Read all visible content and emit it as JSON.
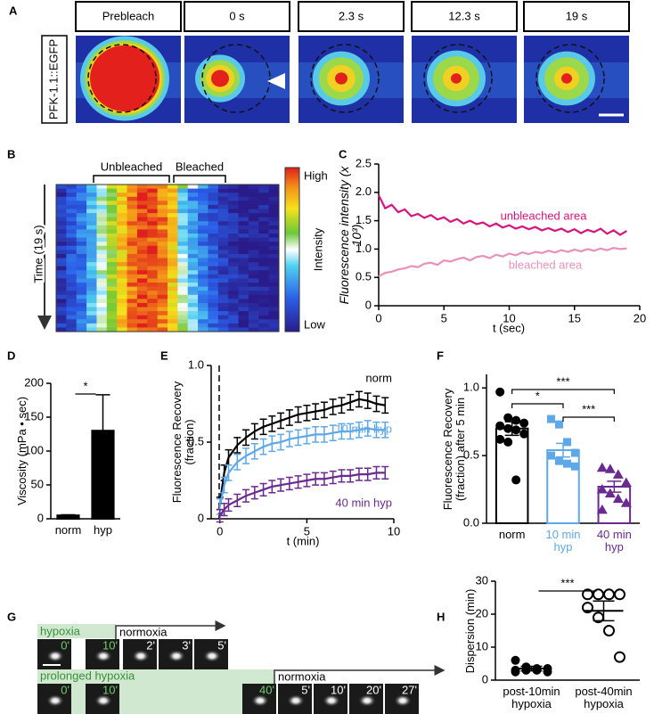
{
  "panel_labels": [
    "A",
    "B",
    "C",
    "D",
    "E",
    "F",
    "G",
    "H"
  ],
  "panel_a": {
    "marker": "PFK-1.1::EGFP",
    "timepoints": [
      "Prebleach",
      "0 s",
      "2.3 s",
      "12.3 s",
      "19 s"
    ]
  },
  "panel_b": {
    "regions": [
      "Unbleached",
      "Bleached"
    ],
    "y_label": "Time (19 s)",
    "colorbar": {
      "high": "High",
      "label": "Intensity",
      "low": "Low"
    }
  },
  "chart_data": [
    {
      "type": "line",
      "y_label": "Fluorescence intensity (x 10³)",
      "x_label": "t (sec)",
      "x": [
        0,
        0.5,
        1,
        1.5,
        2,
        2.5,
        3,
        3.5,
        4,
        4.5,
        5,
        5.5,
        6,
        6.5,
        7,
        7.5,
        8,
        8.5,
        9,
        9.5,
        10,
        10.5,
        11,
        11.5,
        12,
        12.5,
        13,
        13.5,
        14,
        14.5,
        15,
        15.5,
        16,
        16.5,
        17,
        17.5,
        18,
        18.5,
        19
      ],
      "series": [
        {
          "name": "unbleached area",
          "color": "#d6157e",
          "values": [
            1.95,
            1.72,
            1.78,
            1.65,
            1.7,
            1.58,
            1.62,
            1.55,
            1.6,
            1.52,
            1.56,
            1.48,
            1.53,
            1.45,
            1.5,
            1.44,
            1.47,
            1.4,
            1.45,
            1.38,
            1.42,
            1.36,
            1.4,
            1.35,
            1.39,
            1.33,
            1.37,
            1.32,
            1.36,
            1.3,
            1.35,
            1.28,
            1.34,
            1.3,
            1.36,
            1.27,
            1.33,
            1.25,
            1.32
          ]
        },
        {
          "name": "bleached area",
          "color": "#e991b8",
          "values": [
            0.52,
            0.58,
            0.6,
            0.64,
            0.66,
            0.7,
            0.68,
            0.74,
            0.76,
            0.72,
            0.8,
            0.78,
            0.82,
            0.85,
            0.8,
            0.86,
            0.88,
            0.84,
            0.9,
            0.87,
            0.92,
            0.89,
            0.94,
            0.91,
            0.95,
            0.93,
            0.97,
            0.94,
            0.98,
            0.95,
            0.99,
            0.96,
            1.0,
            0.97,
            1.01,
            0.98,
            1.02,
            1.0,
            1.01
          ]
        }
      ],
      "xlim": [
        0,
        20
      ],
      "xticks": [
        0,
        5,
        10,
        15,
        20
      ],
      "ylim": [
        0,
        2.5
      ],
      "yticks": [
        0,
        0.5,
        {
          "value": 1,
          "label": "1.0"
        },
        1.5,
        {
          "value": 2,
          "label": "2.0"
        },
        2.5
      ]
    },
    {
      "type": "bar",
      "y_label": "Viscosity (mPa • sec)",
      "categories": [
        "norm",
        "hyp"
      ],
      "values": [
        5,
        130
      ],
      "errors": [
        1,
        53
      ],
      "colors": [
        "#000000",
        "#000000"
      ],
      "filled": true,
      "ylim": [
        0,
        200
      ],
      "yticks": [
        0,
        50,
        100,
        150,
        200
      ],
      "significance": [
        "*"
      ]
    },
    {
      "type": "line",
      "y_label": "Fluorescence Recovery (fraction)",
      "x_label": "t (min)",
      "x": [
        0,
        0.25,
        0.5,
        1,
        1.5,
        2,
        2.5,
        3,
        3.5,
        4,
        4.5,
        5,
        5.5,
        6,
        6.5,
        7,
        7.5,
        8,
        8.5,
        9,
        9.5
      ],
      "series": [
        {
          "name": "norm",
          "color": "#000000",
          "values": [
            0.1,
            0.3,
            0.4,
            0.48,
            0.53,
            0.57,
            0.6,
            0.62,
            0.64,
            0.66,
            0.68,
            0.69,
            0.7,
            0.71,
            0.73,
            0.74,
            0.76,
            0.78,
            0.77,
            0.75,
            0.74
          ],
          "errors": [
            0.04,
            0.05,
            0.05,
            0.05,
            0.05,
            0.05,
            0.05,
            0.05,
            0.05,
            0.05,
            0.05,
            0.05,
            0.05,
            0.05,
            0.05,
            0.05,
            0.05,
            0.05,
            0.05,
            0.05,
            0.05
          ]
        },
        {
          "name": "10 min hyp",
          "color": "#5fa8e8",
          "values": [
            0.08,
            0.22,
            0.3,
            0.37,
            0.41,
            0.44,
            0.47,
            0.49,
            0.5,
            0.52,
            0.53,
            0.54,
            0.55,
            0.55,
            0.56,
            0.57,
            0.57,
            0.58,
            0.59,
            0.58,
            0.58
          ],
          "errors": [
            0.05,
            0.05,
            0.05,
            0.05,
            0.05,
            0.05,
            0.05,
            0.05,
            0.05,
            0.05,
            0.05,
            0.05,
            0.05,
            0.05,
            0.05,
            0.05,
            0.05,
            0.05,
            0.05,
            0.05,
            0.05
          ]
        },
        {
          "name": "40 min hyp",
          "color": "#6a2a8f",
          "values": [
            0.02,
            0.06,
            0.09,
            0.12,
            0.15,
            0.17,
            0.19,
            0.21,
            0.22,
            0.23,
            0.24,
            0.25,
            0.26,
            0.26,
            0.27,
            0.28,
            0.28,
            0.29,
            0.29,
            0.3,
            0.3
          ],
          "errors": [
            0.04,
            0.04,
            0.04,
            0.04,
            0.04,
            0.04,
            0.04,
            0.04,
            0.04,
            0.04,
            0.04,
            0.04,
            0.04,
            0.04,
            0.04,
            0.04,
            0.04,
            0.04,
            0.04,
            0.04,
            0.04
          ]
        }
      ],
      "xlim": [
        -0.5,
        10
      ],
      "xticks": [
        0,
        5,
        10
      ],
      "ylim": [
        0,
        1
      ],
      "yticks": [
        0,
        0.5,
        {
          "value": 1,
          "label": "1.0"
        }
      ]
    },
    {
      "type": "bar",
      "y_label": "Fluorescence Recovery (fraction) after 5 min",
      "categories": [
        "norm",
        "10 min hyp",
        "40 min hyp"
      ],
      "values": [
        0.7,
        0.54,
        0.27
      ],
      "errors": [
        0.05,
        0.05,
        0.04
      ],
      "colors": [
        "#000000",
        "#5fa8e8",
        "#6a2a8f"
      ],
      "filled": false,
      "markers": [
        "circle",
        "square",
        "triangle"
      ],
      "points": [
        [
          0.97,
          0.78,
          0.76,
          0.74,
          0.72,
          0.7,
          0.69,
          0.66,
          0.62,
          0.6,
          0.32
        ],
        [
          0.77,
          0.73,
          0.6,
          0.52,
          0.5,
          0.46,
          0.44,
          0.42
        ],
        [
          0.41,
          0.4,
          0.36,
          0.3,
          0.25,
          0.22,
          0.18,
          0.15,
          0.1
        ]
      ],
      "ylim": [
        0,
        1.1
      ],
      "yticks": [
        {
          "value": 0,
          "label": "0.0"
        },
        0.5,
        {
          "value": 1,
          "label": "1.0"
        }
      ],
      "significance": [
        "*",
        "***",
        "***"
      ]
    },
    {
      "type": "dot",
      "y_label": "Dispersion (min)",
      "categories": [
        "post-10min hypoxia",
        "post-40min hypoxia"
      ],
      "values": [
        3.5,
        21
      ],
      "errors": [
        0.7,
        3
      ],
      "color": "#000000",
      "markers": [
        "circle",
        "open-circle"
      ],
      "points": [
        [
          6,
          4,
          3.5,
          3.5,
          3,
          3,
          3,
          2.5,
          2.5
        ],
        [
          26,
          26,
          26,
          26,
          22,
          19,
          15,
          7
        ]
      ],
      "ylim": [
        0,
        30
      ],
      "yticks": [
        0,
        10,
        20,
        30
      ],
      "significance": [
        "***"
      ]
    }
  ],
  "panel_g": {
    "rows": [
      {
        "condition": "hypoxia",
        "recovery": "normoxia",
        "hypoxia_frames": [
          "0'",
          "10'"
        ],
        "recovery_frames": [
          "2'",
          "3'",
          "5'"
        ]
      },
      {
        "condition": "prolonged hypoxia",
        "recovery": "normoxia",
        "hypoxia_frames": [
          "0'",
          "10'",
          "40'"
        ],
        "recovery_frames": [
          "5'",
          "10'",
          "20'",
          "27'"
        ]
      }
    ]
  }
}
